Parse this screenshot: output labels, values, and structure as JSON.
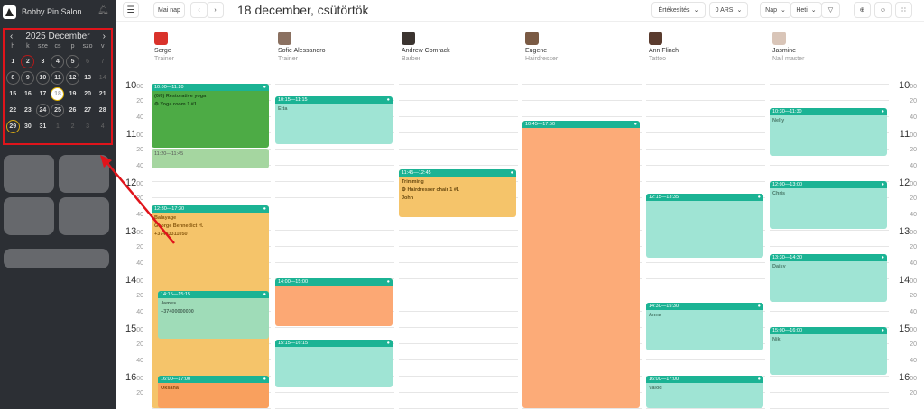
{
  "app": {
    "name": "Bobby Pin Salon"
  },
  "mini_calendar": {
    "title": "2025 December",
    "weekdays": [
      "h",
      "k",
      "sze",
      "cs",
      "p",
      "szo",
      "v"
    ],
    "days": [
      {
        "n": "1",
        "s": ""
      },
      {
        "n": "2",
        "s": "red"
      },
      {
        "n": "3",
        "s": ""
      },
      {
        "n": "4",
        "s": "ring"
      },
      {
        "n": "5",
        "s": "ring"
      },
      {
        "n": "6",
        "s": "dim"
      },
      {
        "n": "7",
        "s": "dim"
      },
      {
        "n": "8",
        "s": "ring"
      },
      {
        "n": "9",
        "s": "ring"
      },
      {
        "n": "10",
        "s": "ring"
      },
      {
        "n": "11",
        "s": "ring"
      },
      {
        "n": "12",
        "s": "ring"
      },
      {
        "n": "13",
        "s": ""
      },
      {
        "n": "14",
        "s": "dim"
      },
      {
        "n": "15",
        "s": ""
      },
      {
        "n": "16",
        "s": ""
      },
      {
        "n": "17",
        "s": ""
      },
      {
        "n": "18",
        "s": "sel"
      },
      {
        "n": "19",
        "s": ""
      },
      {
        "n": "20",
        "s": ""
      },
      {
        "n": "21",
        "s": ""
      },
      {
        "n": "22",
        "s": ""
      },
      {
        "n": "23",
        "s": ""
      },
      {
        "n": "24",
        "s": "ring"
      },
      {
        "n": "25",
        "s": "ring"
      },
      {
        "n": "26",
        "s": ""
      },
      {
        "n": "27",
        "s": ""
      },
      {
        "n": "28",
        "s": ""
      },
      {
        "n": "29",
        "s": "yel"
      },
      {
        "n": "30",
        "s": ""
      },
      {
        "n": "31",
        "s": ""
      },
      {
        "n": "1",
        "s": "dim"
      },
      {
        "n": "2",
        "s": "dim"
      },
      {
        "n": "3",
        "s": "dim"
      },
      {
        "n": "4",
        "s": "dim"
      }
    ]
  },
  "toolbar": {
    "today": "Mai nap",
    "date_title": "18 december, csütörtök",
    "sales": "Értékesítés",
    "currency": "0 ARS",
    "view_day": "Nap",
    "view_week": "Heti"
  },
  "staff": [
    {
      "name": "Serge",
      "role": "Trainer",
      "color": "#d9322b"
    },
    {
      "name": "Sofie Alessandro",
      "role": "Trainer",
      "color": "#8a7060"
    },
    {
      "name": "Andrew Comrack",
      "role": "Barber",
      "color": "#3b3430"
    },
    {
      "name": "Eugene",
      "role": "Hairdresser",
      "color": "#7a5a44"
    },
    {
      "name": "Ann Flinch",
      "role": "Tattoo",
      "color": "#5a3b2e"
    },
    {
      "name": "Jasmine",
      "role": "Nail master",
      "color": "#d9c5b8"
    }
  ],
  "hours": [
    "10",
    "11",
    "12",
    "13",
    "14",
    "15",
    "16"
  ],
  "minute_labels": {
    "zero": "00",
    "twenty": "20",
    "forty": "40"
  },
  "events": [
    {
      "col": 0,
      "start": "10:00",
      "end": "11:20",
      "time": "10:00—11:20",
      "lines": [
        "(0/6) Restorative yoga",
        "⚙ Yoga room 1 #1"
      ],
      "bg": "#4dab45",
      "head": "#1bb394",
      "text": "#1f4d1c"
    },
    {
      "col": 0,
      "start": "11:20",
      "end": "11:45",
      "time": "11:20—11:45",
      "lines": [],
      "bg": "#a5d6a0",
      "head": "",
      "text": "#555"
    },
    {
      "col": 0,
      "start": "12:30",
      "end": "17:30",
      "time": "12:30—17:30",
      "lines": [
        "Balayage",
        "George Bennedict H.",
        "+37493311050"
      ],
      "bg": "#f5c46a",
      "head": "#1bb394",
      "text": "#8a5a10"
    },
    {
      "col": 0,
      "start": "14:15",
      "end": "15:15",
      "time": "14:15—15:15",
      "lines": [
        "James",
        "+37400000000"
      ],
      "bg": "#9fdcb8",
      "head": "#1bb394",
      "text": "#4a6a5a",
      "indent": true
    },
    {
      "col": 0,
      "start": "16:00",
      "end": "17:00",
      "time": "16:00—17:00",
      "lines": [
        "Oksana"
      ],
      "bg": "#f9a05e",
      "head": "#1bb394",
      "text": "#8a4a10",
      "indent": true
    },
    {
      "col": 1,
      "start": "10:15",
      "end": "11:15",
      "time": "10:15—11:15",
      "lines": [
        "Etta"
      ],
      "bg": "#9fe4d4",
      "head": "#1bb394",
      "text": "#4a7a6a"
    },
    {
      "col": 1,
      "start": "14:00",
      "end": "15:00",
      "time": "14:00—15:00",
      "lines": [],
      "bg": "#fca874",
      "head": "#1bb394",
      "text": "#555"
    },
    {
      "col": 1,
      "start": "15:15",
      "end": "16:15",
      "time": "15:15—16:15",
      "lines": [],
      "bg": "#9fe4d4",
      "head": "#1bb394",
      "text": "#555"
    },
    {
      "col": 2,
      "start": "11:45",
      "end": "12:45",
      "time": "11:45—12:45",
      "lines": [
        "Trimming",
        "⚙ Hairdresser chair 1 #1",
        "John"
      ],
      "bg": "#f5c46a",
      "head": "#1bb394",
      "text": "#6a4a10"
    },
    {
      "col": 3,
      "start": "10:45",
      "end": "17:50",
      "time": "10:45—17:50",
      "lines": [],
      "bg": "#fcab78",
      "head": "#1bb394",
      "text": "#555"
    },
    {
      "col": 4,
      "start": "12:15",
      "end": "13:35",
      "time": "12:15—13:35",
      "lines": [],
      "bg": "#9fe4d4",
      "head": "#1bb394",
      "text": "#555"
    },
    {
      "col": 4,
      "start": "14:30",
      "end": "15:30",
      "time": "14:30—15:30",
      "lines": [
        "Anna"
      ],
      "bg": "#9fe4d4",
      "head": "#1bb394",
      "text": "#4a7a6a"
    },
    {
      "col": 4,
      "start": "16:00",
      "end": "17:00",
      "time": "16:00—17:00",
      "lines": [
        "Valod"
      ],
      "bg": "#9fe4d4",
      "head": "#1bb394",
      "text": "#4a7a6a"
    },
    {
      "col": 5,
      "start": "10:30",
      "end": "11:30",
      "time": "10:30—11:30",
      "lines": [
        "Nelly"
      ],
      "bg": "#9fe4d4",
      "head": "#1bb394",
      "text": "#4a7a6a"
    },
    {
      "col": 5,
      "start": "12:00",
      "end": "13:00",
      "time": "12:00—13:00",
      "lines": [
        "Chris"
      ],
      "bg": "#9fe4d4",
      "head": "#1bb394",
      "text": "#4a7a6a"
    },
    {
      "col": 5,
      "start": "13:30",
      "end": "14:30",
      "time": "13:30—14:30",
      "lines": [
        "Daisy"
      ],
      "bg": "#9fe4d4",
      "head": "#1bb394",
      "text": "#4a7a6a"
    },
    {
      "col": 5,
      "start": "15:00",
      "end": "16:00",
      "time": "15:00—16:00",
      "lines": [
        "Nik"
      ],
      "bg": "#9fe4d4",
      "head": "#1bb394",
      "text": "#4a7a6a"
    }
  ],
  "annotation_color": "#e0141b"
}
